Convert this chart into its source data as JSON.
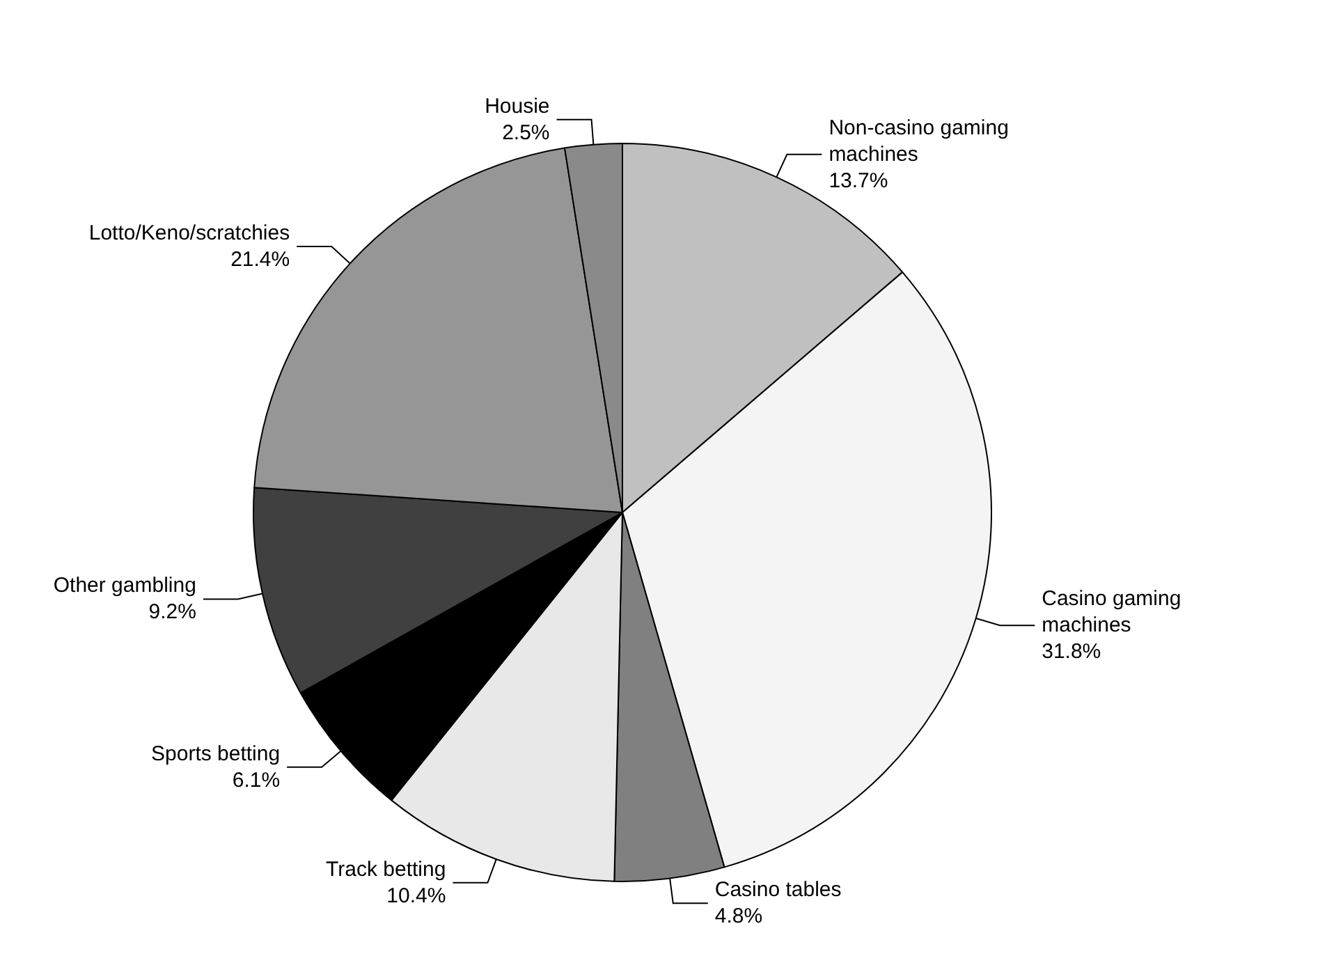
{
  "chart_data": {
    "type": "pie",
    "categories": [
      "Non-casino gaming machines",
      "Casino gaming machines",
      "Casino tables",
      "Track betting",
      "Sports betting",
      "Other gambling",
      "Lotto/Keno/scratchies",
      "Housie"
    ],
    "values": [
      13.7,
      31.8,
      4.8,
      10.4,
      6.1,
      9.2,
      21.4,
      2.5
    ],
    "value_labels": [
      "13.7%",
      "31.8%",
      "4.8%",
      "10.4%",
      "6.1%",
      "9.2%",
      "21.4%",
      "2.5%"
    ],
    "colors": [
      "#c0c0c0",
      "#f4f4f4",
      "#808080",
      "#e8e8e8",
      "#000000",
      "#404040",
      "#969696",
      "#8a8a8a"
    ],
    "legend": false
  }
}
